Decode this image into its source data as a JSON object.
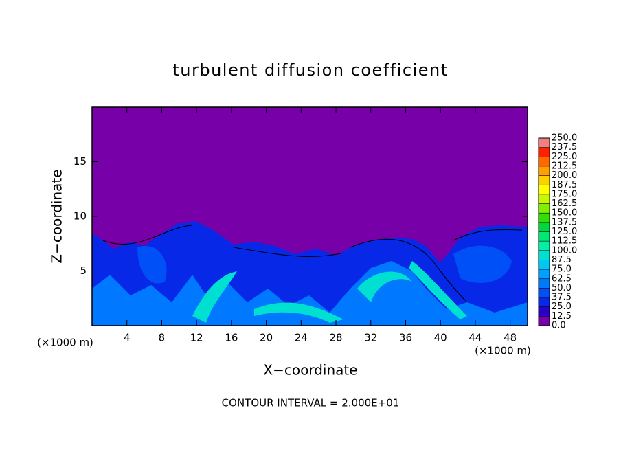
{
  "chart_data": {
    "type": "contour",
    "title": "turbulent diffusion coefficient",
    "xlabel": "X−coordinate",
    "ylabel": "Z−coordinate",
    "xunit": "(×1000 m)",
    "yunit": "(×1000 m)",
    "note": "CONTOUR INTERVAL = 2.000E+01",
    "xlim": [
      0,
      50
    ],
    "ylim": [
      0,
      20
    ],
    "xticks": [
      4,
      8,
      12,
      16,
      20,
      24,
      28,
      32,
      36,
      40,
      44,
      48
    ],
    "yticks": [
      5,
      10,
      15
    ],
    "colorbar": {
      "levels": [
        {
          "value": 0,
          "label": "0.0"
        },
        12.5,
        {
          "value": 25,
          "label": "25.0"
        },
        37.5,
        {
          "value": 50,
          "label": "50.0"
        },
        62.5,
        {
          "value": 75,
          "label": "75.0"
        },
        87.5,
        {
          "value": 100,
          "label": "100.0"
        },
        112.5,
        {
          "value": 125,
          "label": "125.0"
        },
        137.5,
        {
          "value": 150,
          "label": "150.0"
        },
        162.5,
        {
          "value": 175,
          "label": "175.0"
        },
        187.5,
        {
          "value": 200,
          "label": "200.0"
        },
        212.5,
        {
          "value": 225,
          "label": "225.0"
        },
        237.5,
        {
          "value": 250,
          "label": "250.0"
        }
      ],
      "colors": [
        "#7800a8",
        "#2800c8",
        "#0828e8",
        "#0050f8",
        "#0078ff",
        "#00a0ff",
        "#00c8f0",
        "#00e0d0",
        "#00f0a8",
        "#00e878",
        "#00d840",
        "#30e000",
        "#80f000",
        "#c8f800",
        "#ffff00",
        "#ffd000",
        "#ffa000",
        "#ff6800",
        "#ff2000",
        "#f08080"
      ]
    }
  }
}
